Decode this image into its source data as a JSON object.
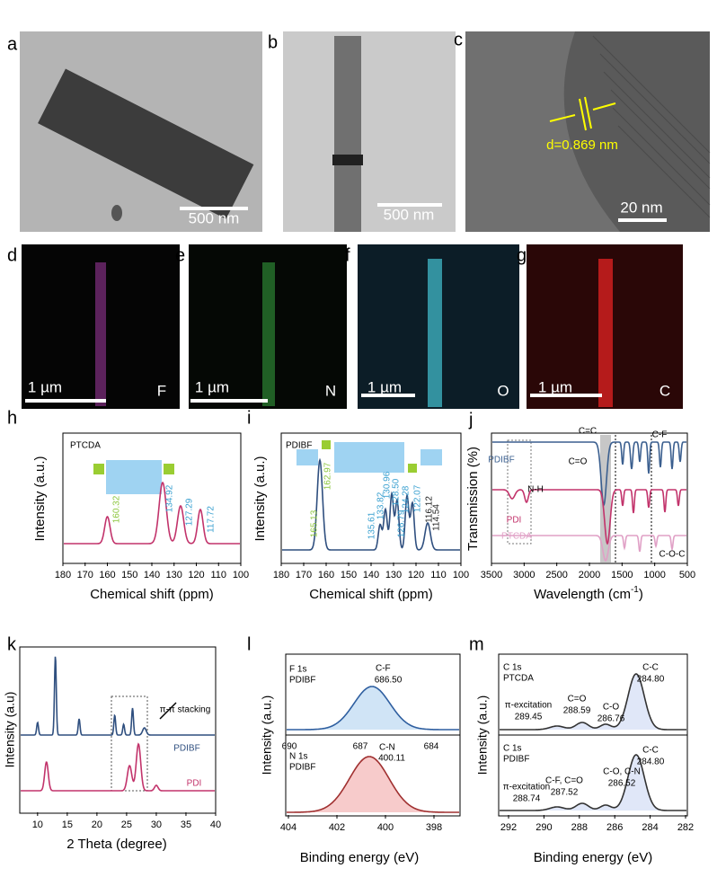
{
  "panels": {
    "a": {
      "label": "a",
      "scale_bar": "500 nm"
    },
    "b": {
      "label": "b",
      "scale_bar": "500 nm"
    },
    "c": {
      "label": "c",
      "scale_bar": "20 nm",
      "annotation": "d=0.869 nm"
    },
    "d": {
      "label": "d",
      "scale_bar": "1 µm",
      "element": "F"
    },
    "e": {
      "label": "e",
      "scale_bar": "1 µm",
      "element": "N"
    },
    "f": {
      "label": "f",
      "scale_bar": "1 µm",
      "element": "O"
    },
    "g": {
      "label": "g",
      "scale_bar": "1 µm",
      "element": "C"
    },
    "h": {
      "label": "h",
      "sample": "PTCDA",
      "x_label": "Chemical shift (ppm)",
      "y_label": "Intensity (a.u.)",
      "x_ticks": [
        "180",
        "170",
        "160",
        "150",
        "140",
        "130",
        "120",
        "110",
        "100"
      ],
      "peaks": [
        "160.32",
        "134.92",
        "127.29",
        "117.72"
      ]
    },
    "i": {
      "label": "i",
      "sample": "PDIBF",
      "x_label": "Chemical shift (ppm)",
      "y_label": "Intensity (a.u.)",
      "x_ticks": [
        "180",
        "170",
        "160",
        "150",
        "140",
        "130",
        "120",
        "110",
        "100"
      ],
      "peaks": [
        "165.13",
        "162.97",
        "135.61",
        "133.82",
        "130.96",
        "128.50",
        "126.79",
        "124.28",
        "122.07",
        "116.12",
        "114.54"
      ]
    },
    "j": {
      "label": "j",
      "x_label": "Wavelength (cm",
      "x_label_sup": "-1",
      "x_label_end": ")",
      "y_label": "Transmission (%)",
      "x_ticks": [
        "3500",
        "3000",
        "2500",
        "2000",
        "1500",
        "1000",
        "500"
      ],
      "series": [
        "PDIBF",
        "PDI",
        "PTCDA"
      ],
      "annotations": [
        "C=C",
        "C-F",
        "C=O",
        "N-H",
        "C-O-C"
      ]
    },
    "k": {
      "label": "k",
      "x_label": "2 Theta (degree)",
      "y_label": "Intensity (a.u)",
      "x_ticks": [
        "10",
        "15",
        "20",
        "25",
        "30",
        "35",
        "40"
      ],
      "series": [
        "PDIBF",
        "PDI"
      ],
      "annotation": "π-π stacking"
    },
    "l": {
      "label": "l",
      "x_label": "Binding energy (eV)",
      "y_label": "Intensity (a.u.)",
      "x_ticks": [
        "404",
        "402",
        "400",
        "398"
      ],
      "top": {
        "title": "F 1s",
        "sample": "PDIBF",
        "peak": "C-F",
        "peak_value": "686.50",
        "x_ticks": [
          "690",
          "687",
          "684"
        ]
      },
      "bottom": {
        "title": "N 1s",
        "sample": "PDIBF",
        "peak": "C-N",
        "peak_value": "400.11"
      }
    },
    "m": {
      "label": "m",
      "x_label": "Binding energy (eV)",
      "y_label": "Intensity (a.u.)",
      "x_ticks": [
        "292",
        "290",
        "288",
        "286",
        "284",
        "282"
      ],
      "top": {
        "title": "C 1s",
        "sample": "PTCDA",
        "peaks": [
          [
            "π-excitation",
            "289.45"
          ],
          [
            "C=O",
            "288.59"
          ],
          [
            "C-O",
            "286.76"
          ],
          [
            "C-C",
            "284.80"
          ]
        ]
      },
      "bottom": {
        "title": "C 1s",
        "sample": "PDIBF",
        "peaks": [
          [
            "π-excitation",
            "288.74"
          ],
          [
            "C-F, C=O",
            "287.52"
          ],
          [
            "C-O, C-N",
            "286.52"
          ],
          [
            "C-C",
            "284.80"
          ]
        ]
      }
    }
  }
}
